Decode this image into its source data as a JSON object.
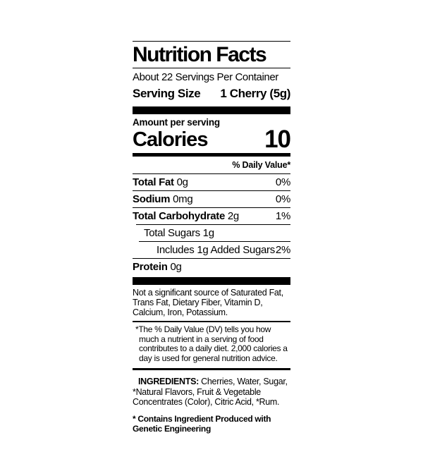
{
  "label": {
    "title": "Nutrition Facts",
    "servings_per_container": "About 22 Servings Per Container",
    "serving_size_label": "Serving Size",
    "serving_size_value": "1 Cherry (5g)",
    "amount_per_serving": "Amount per serving",
    "calories_label": "Calories",
    "calories_value": "10",
    "daily_value_header": "% Daily Value*",
    "nutrients": [
      {
        "name": "Total Fat",
        "amount": "0g",
        "dv": "0%"
      },
      {
        "name": "Sodium",
        "amount": "0mg",
        "dv": "0%"
      },
      {
        "name": "Total Carbohydrate",
        "amount": "2g",
        "dv": "1%"
      },
      {
        "name": "Total Sugars",
        "amount": "1g",
        "dv": ""
      },
      {
        "name": "Includes 1g Added Sugars",
        "amount": "",
        "dv": "2%"
      },
      {
        "name": "Protein",
        "amount": "0g",
        "dv": ""
      }
    ],
    "not_significant": "Not a significant source of Saturated Fat, Trans Fat, Dietary Fiber, Vitamin D, Calcium, Iron, Potassium.",
    "footnote": "*The % Daily Value (DV) tells you how much a nutrient in a serving of food contributes to a daily diet. 2,000 calories a day is used for general nutrition advice.",
    "ingredients_label": "INGREDIENTS:",
    "ingredients_text": " Cherries, Water, Sugar, *Natural Flavors, Fruit & Vegetable Concentrates (Color), Citric Acid, *Rum.",
    "ge_statement": "* Contains Ingredient Produced with Genetic Engineering",
    "colors": {
      "ink": "#000000",
      "background": "#ffffff"
    }
  }
}
